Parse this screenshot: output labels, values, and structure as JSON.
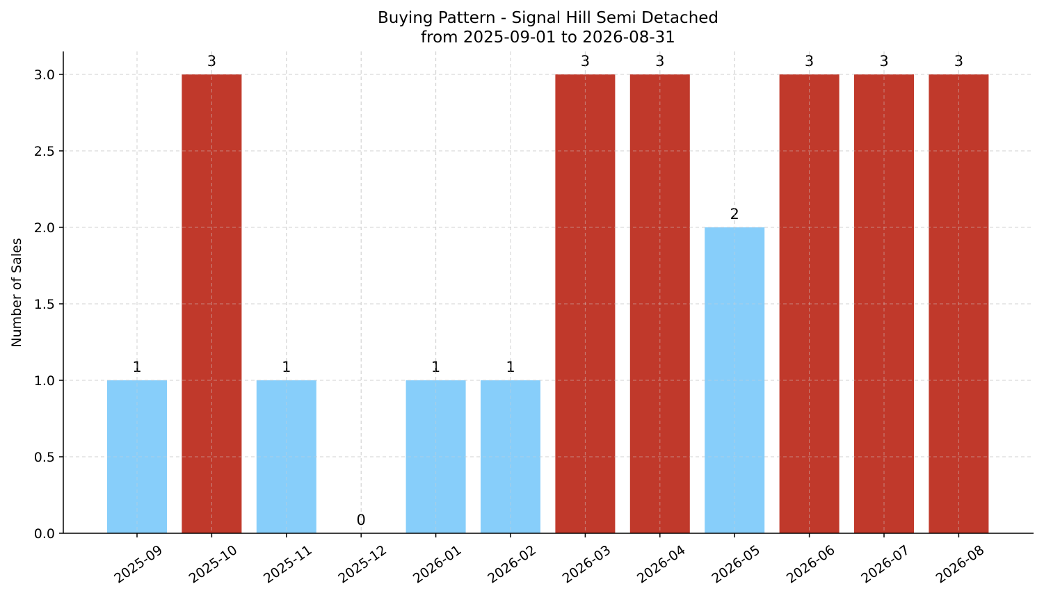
{
  "chart_data": {
    "type": "bar",
    "title": "Buying Pattern - Signal Hill Semi Detached",
    "subtitle": "from 2025-09-01 to 2026-08-31",
    "xlabel": "",
    "ylabel": "Number of Sales",
    "categories": [
      "2025-09",
      "2025-10",
      "2025-11",
      "2025-12",
      "2026-01",
      "2026-02",
      "2026-03",
      "2026-04",
      "2026-05",
      "2026-06",
      "2026-07",
      "2026-08"
    ],
    "values": [
      1,
      3,
      1,
      0,
      1,
      1,
      3,
      3,
      2,
      3,
      3,
      3
    ],
    "data_labels": [
      "1",
      "3",
      "1",
      "0",
      "1",
      "1",
      "3",
      "3",
      "2",
      "3",
      "3",
      "3"
    ],
    "ylim": [
      0,
      3.15
    ],
    "yticks": [
      "0.0",
      "0.5",
      "1.0",
      "1.5",
      "2.0",
      "2.5",
      "3.0"
    ],
    "grid": true,
    "colors": {
      "high": "#c0392b",
      "low": "#87cefa"
    }
  }
}
